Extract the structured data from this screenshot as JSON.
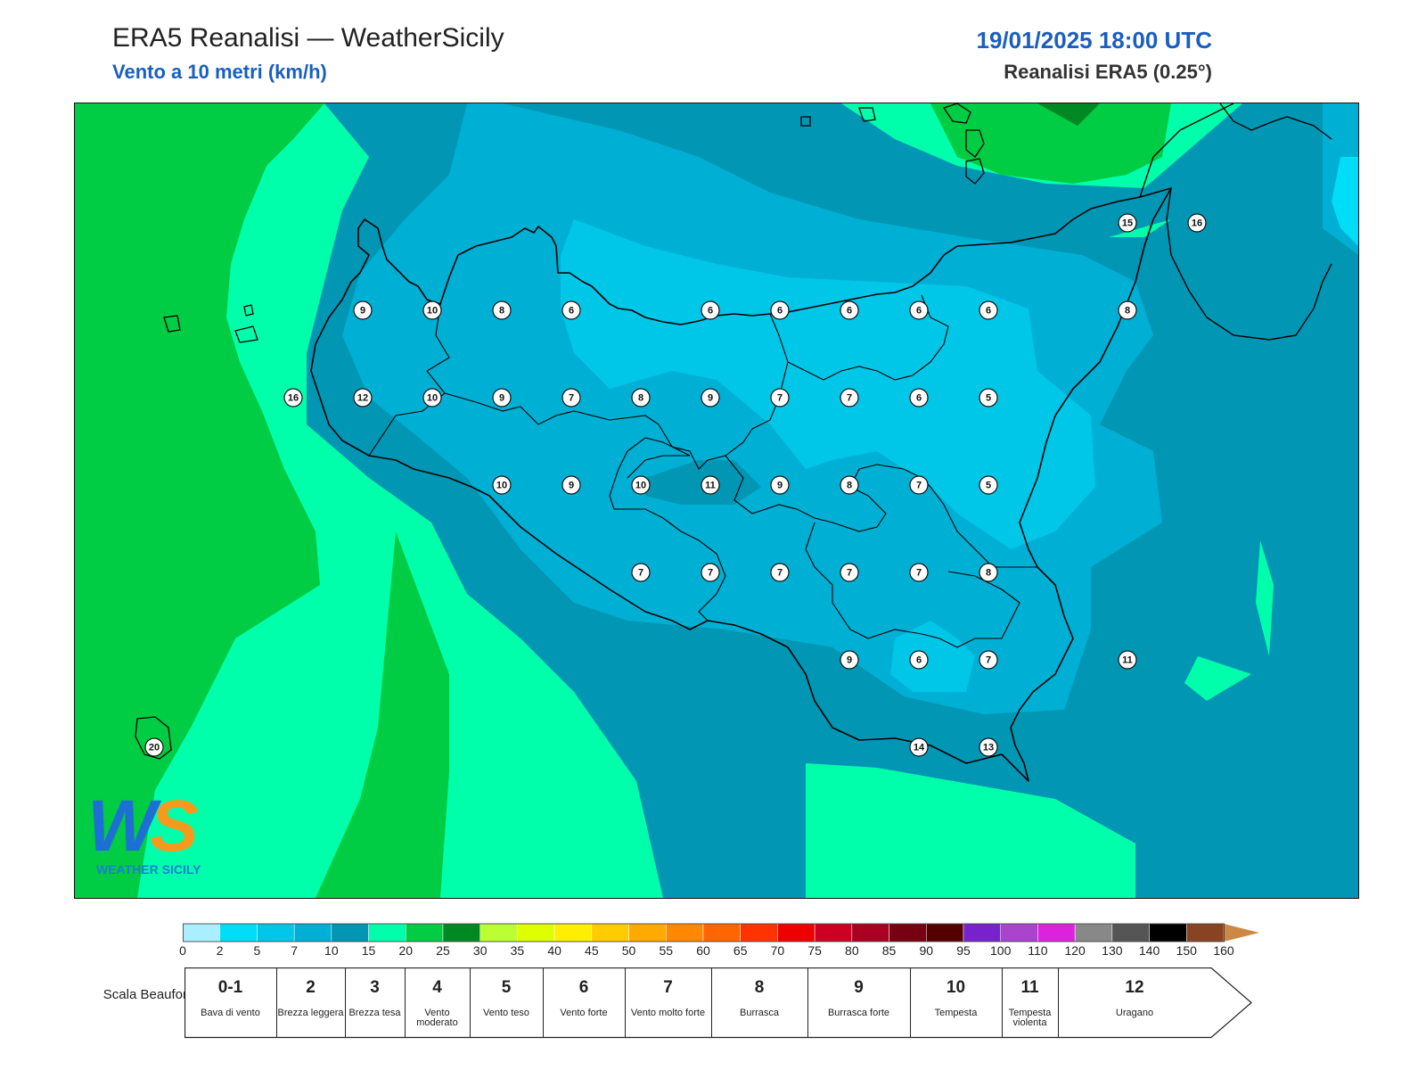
{
  "header": {
    "title": "ERA5 Reanalisi — WeatherSicily",
    "subtitle": "Vento a 10 metri (km/h)",
    "datetime": "19/01/2025 18:00 UTC",
    "model": "Reanalisi ERA5 (0.25°)"
  },
  "logo": {
    "text": "WEATHER SICILY",
    "monogram": "WS"
  },
  "colors": {
    "band_0_2": "#aaeeff",
    "band_2_5": "#00ddf7",
    "band_5_7": "#00c6e8",
    "band_7_10": "#00afd4",
    "band_10_15": "#0096b4",
    "band_15_20": "#00ffaa",
    "band_20_25": "#00cc44",
    "band_25_30": "#008822"
  },
  "wind_points": [
    {
      "v": "9",
      "lon": 12.9,
      "lat": 38.3
    },
    {
      "v": "10",
      "lon": 13.4,
      "lat": 38.3
    },
    {
      "v": "8",
      "lon": 13.9,
      "lat": 38.3
    },
    {
      "v": "6",
      "lon": 14.4,
      "lat": 38.3
    },
    {
      "v": "6",
      "lon": 15.4,
      "lat": 38.3
    },
    {
      "v": "6",
      "lon": 15.9,
      "lat": 38.3
    },
    {
      "v": "6",
      "lon": 16.4,
      "lat": 38.3
    },
    {
      "v": "6",
      "lon": 16.9,
      "lat": 38.3
    },
    {
      "v": "6",
      "lon": 17.4,
      "lat": 38.3
    },
    {
      "v": "8",
      "lon": 18.4,
      "lat": 38.3
    },
    {
      "v": "16",
      "lon": 12.4,
      "lat": 37.8
    },
    {
      "v": "12",
      "lon": 12.9,
      "lat": 37.8
    },
    {
      "v": "10",
      "lon": 13.4,
      "lat": 37.8
    },
    {
      "v": "9",
      "lon": 13.9,
      "lat": 37.8
    },
    {
      "v": "7",
      "lon": 14.4,
      "lat": 37.8
    },
    {
      "v": "8",
      "lon": 14.9,
      "lat": 37.8
    },
    {
      "v": "9",
      "lon": 15.4,
      "lat": 37.8
    },
    {
      "v": "7",
      "lon": 15.9,
      "lat": 37.8
    },
    {
      "v": "7",
      "lon": 16.4,
      "lat": 37.8
    },
    {
      "v": "6",
      "lon": 16.9,
      "lat": 37.8
    },
    {
      "v": "5",
      "lon": 17.4,
      "lat": 37.8
    },
    {
      "v": "10",
      "lon": 13.9,
      "lat": 37.3
    },
    {
      "v": "9",
      "lon": 14.4,
      "lat": 37.3
    },
    {
      "v": "10",
      "lon": 14.9,
      "lat": 37.3
    },
    {
      "v": "11",
      "lon": 15.4,
      "lat": 37.3
    },
    {
      "v": "9",
      "lon": 15.9,
      "lat": 37.3
    },
    {
      "v": "8",
      "lon": 16.4,
      "lat": 37.3
    },
    {
      "v": "7",
      "lon": 16.9,
      "lat": 37.3
    },
    {
      "v": "5",
      "lon": 17.4,
      "lat": 37.3
    },
    {
      "v": "7",
      "lon": 14.9,
      "lat": 36.8
    },
    {
      "v": "7",
      "lon": 15.4,
      "lat": 36.8
    },
    {
      "v": "7",
      "lon": 15.9,
      "lat": 36.8
    },
    {
      "v": "7",
      "lon": 16.4,
      "lat": 36.8
    },
    {
      "v": "7",
      "lon": 16.9,
      "lat": 36.8
    },
    {
      "v": "8",
      "lon": 17.4,
      "lat": 36.8
    },
    {
      "v": "9",
      "lon": 16.4,
      "lat": 36.3
    },
    {
      "v": "6",
      "lon": 16.9,
      "lat": 36.3
    },
    {
      "v": "7",
      "lon": 17.4,
      "lat": 36.3
    },
    {
      "v": "11",
      "lon": 18.4,
      "lat": 36.3
    },
    {
      "v": "14",
      "lon": 16.9,
      "lat": 35.8
    },
    {
      "v": "13",
      "lon": 17.4,
      "lat": 35.8
    },
    {
      "v": "15",
      "lon": 18.4,
      "lat": 38.8
    },
    {
      "v": "16",
      "lon": 18.9,
      "lat": 38.8
    },
    {
      "v": "20",
      "lon": 11.4,
      "lat": 35.8
    }
  ],
  "colorbar": {
    "ticks": [
      "0",
      "2",
      "5",
      "7",
      "10",
      "15",
      "20",
      "25",
      "30",
      "35",
      "40",
      "45",
      "50",
      "55",
      "60",
      "65",
      "70",
      "75",
      "80",
      "85",
      "90",
      "95",
      "100",
      "110",
      "120",
      "130",
      "140",
      "150",
      "160"
    ],
    "colors": [
      "#aaeeff",
      "#00ddf7",
      "#00c6e8",
      "#00afd4",
      "#0096b4",
      "#00ffaa",
      "#00cc44",
      "#008822",
      "#bbff33",
      "#ddff00",
      "#ffee00",
      "#ffcc00",
      "#ffaa00",
      "#ff8800",
      "#ff6600",
      "#ff3300",
      "#ee0000",
      "#cc0022",
      "#aa0022",
      "#770011",
      "#550000",
      "#7722cc",
      "#aa44cc",
      "#dd22dd",
      "#888888",
      "#555555",
      "#000000",
      "#884422",
      "#cc8844"
    ]
  },
  "beaufort": {
    "title": "Scala Beaufort",
    "cells": [
      {
        "num": "0-1",
        "desc": "Bava di vento"
      },
      {
        "num": "2",
        "desc": "Brezza leggera"
      },
      {
        "num": "3",
        "desc": "Brezza tesa"
      },
      {
        "num": "4",
        "desc": "Vento moderato"
      },
      {
        "num": "5",
        "desc": "Vento teso"
      },
      {
        "num": "6",
        "desc": "Vento forte"
      },
      {
        "num": "7",
        "desc": "Vento molto forte"
      },
      {
        "num": "8",
        "desc": "Burrasca"
      },
      {
        "num": "9",
        "desc": "Burrasca forte"
      },
      {
        "num": "10",
        "desc": "Tempesta"
      },
      {
        "num": "11",
        "desc": "Tempesta violenta"
      },
      {
        "num": "12",
        "desc": "Uragano"
      }
    ]
  }
}
